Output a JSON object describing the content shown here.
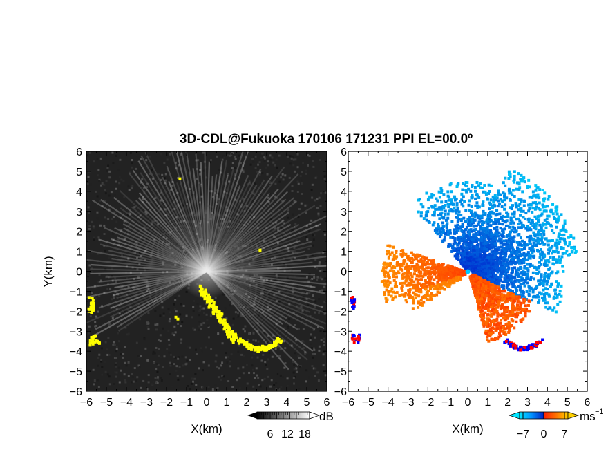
{
  "title": "3D-CDL@Fukuoka 170106 171231 PPI EL=00.0º",
  "left_panel": {
    "xlabel": "X(km)",
    "ylabel": "Y(km)",
    "colorbar": {
      "unit": "dB",
      "ticks": [
        "6",
        "12",
        "18"
      ]
    }
  },
  "right_panel": {
    "xlabel": "X(km)",
    "colorbar": {
      "unit": "ms",
      "unit_exp": "−1",
      "ticks": [
        "−7",
        "0",
        "7"
      ]
    }
  },
  "chart_data": [
    {
      "type": "heatmap",
      "name": "reflectivity",
      "xlabel": "X(km)",
      "ylabel": "Y(km)",
      "xlim": [
        -6,
        6
      ],
      "ylim": [
        -6,
        6
      ],
      "xticks": [
        "−6",
        "−5",
        "−4",
        "−3",
        "−2",
        "−1",
        "0",
        "1",
        "2",
        "3",
        "4",
        "5",
        "6"
      ],
      "yticks": [
        "6",
        "5",
        "4",
        "3",
        "2",
        "1",
        "0",
        "−1",
        "−2",
        "−3",
        "−4",
        "−5",
        "−6"
      ],
      "colorbar": {
        "unit": "dB",
        "range": [
          0,
          24
        ],
        "ticks": [
          6,
          12,
          18
        ]
      },
      "colors": {
        "background": "#202020",
        "rays": "#d8d8d8",
        "hard_target": "#ffff00"
      }
    },
    {
      "type": "heatmap",
      "name": "doppler_velocity",
      "xlabel": "X(km)",
      "xlim": [
        -6,
        6
      ],
      "ylim": [
        -6,
        6
      ],
      "xticks": [
        "−6",
        "−5",
        "−4",
        "−3",
        "−2",
        "−1",
        "0",
        "1",
        "2",
        "3",
        "4",
        "5",
        "6"
      ],
      "colorbar": {
        "unit": "ms−1",
        "range": [
          -10,
          10
        ],
        "ticks": [
          -7,
          0,
          7
        ]
      },
      "colors": {
        "negative_low": "#00e5ff",
        "negative_high": "#0030d0",
        "positive_low": "#ffb000",
        "positive_high": "#ff3000",
        "flag_red": "#ff0000",
        "flag_blue": "#0000ff"
      }
    }
  ]
}
